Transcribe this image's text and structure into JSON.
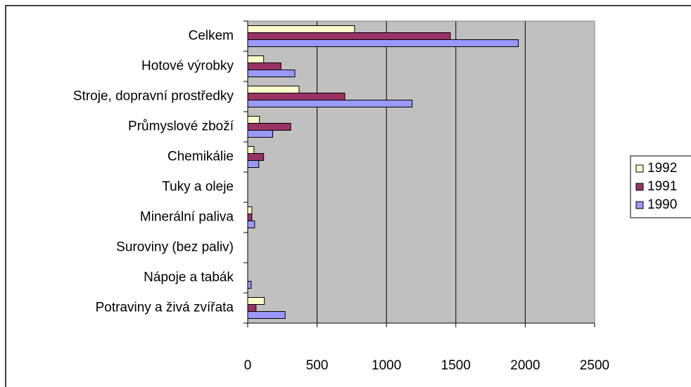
{
  "chart_data": {
    "type": "bar",
    "orientation": "horizontal",
    "categories": [
      "Celkem",
      "Hotové výrobky",
      "Stroje, dopravní prostředky",
      "Průmyslové zboží",
      "Chemikálie",
      "Tuky a oleje",
      "Minerální paliva",
      "Suroviny (bez paliv)",
      "Nápoje a tabák",
      "Potraviny a živá zvířata"
    ],
    "series": [
      {
        "name": "1992",
        "color": "#ffffcc",
        "values": [
          770,
          115,
          370,
          85,
          45,
          0,
          30,
          0,
          0,
          120
        ]
      },
      {
        "name": "1991",
        "color": "#993366",
        "values": [
          1460,
          240,
          700,
          310,
          115,
          0,
          30,
          0,
          0,
          60
        ]
      },
      {
        "name": "1990",
        "color": "#9999ff",
        "values": [
          1950,
          340,
          1185,
          180,
          80,
          0,
          50,
          0,
          25,
          270
        ]
      }
    ],
    "xlim": [
      0,
      2500
    ],
    "xticks": [
      0,
      500,
      1000,
      1500,
      2000,
      2500
    ],
    "grid": true
  }
}
